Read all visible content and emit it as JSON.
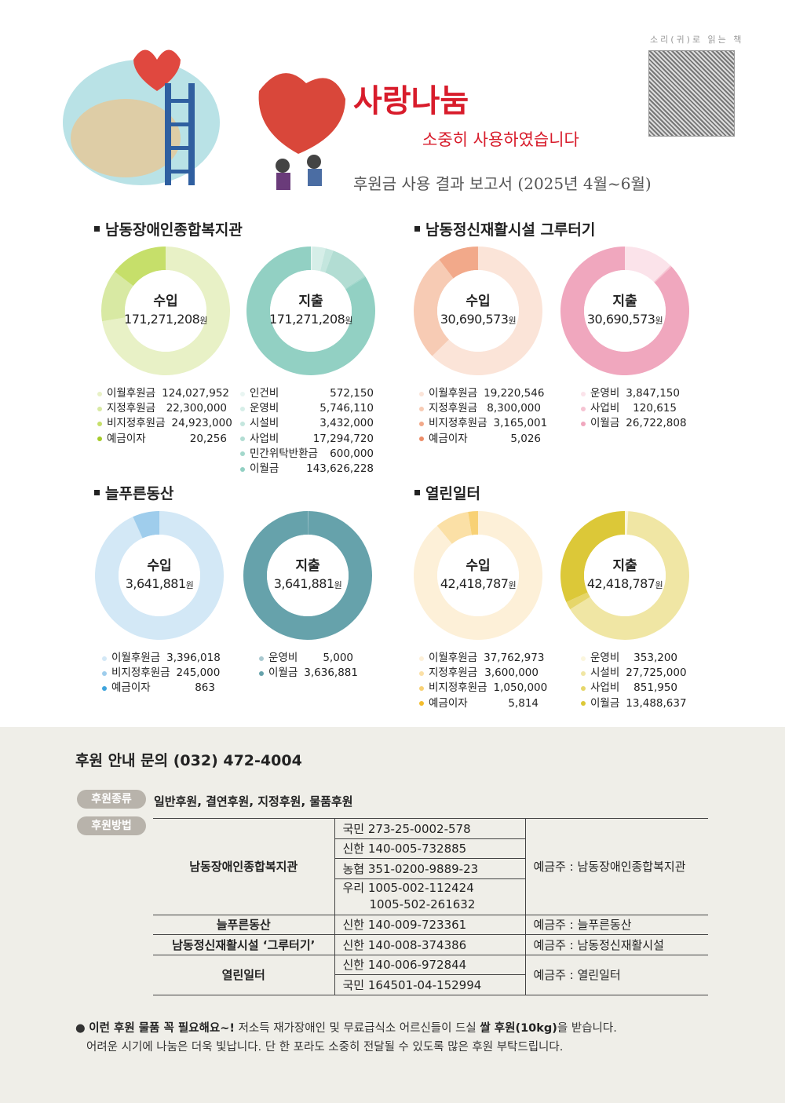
{
  "header": {
    "qr_label": "소리(귀)로 읽는 책",
    "title": "사랑나눔",
    "subtitle": "소중히 사용하였습니다",
    "report": "후원금 사용 결과 보고서 (2025년 4월~6월)"
  },
  "sections": [
    {
      "title": "남동장애인종합복지관",
      "income": {
        "label": "수입",
        "amount": "171,271,208",
        "unit": "원",
        "items": [
          {
            "name": "이월후원금",
            "value": "124,027,952",
            "num": 124027952,
            "color": "#e8f1c6"
          },
          {
            "name": "지정후원금",
            "value": "22,300,000",
            "num": 22300000,
            "color": "#d8e9a3"
          },
          {
            "name": "비지정후원금",
            "value": "24,923,000",
            "num": 24923000,
            "color": "#c6df6a"
          },
          {
            "name": "예금이자",
            "value": "20,256",
            "num": 20256,
            "color": "#a6cc2a"
          }
        ]
      },
      "expense": {
        "label": "지출",
        "amount": "171,271,208",
        "unit": "원",
        "items": [
          {
            "name": "인건비",
            "value": "572,150",
            "num": 572150,
            "color": "#e9f5f2"
          },
          {
            "name": "운영비",
            "value": "5,746,110",
            "num": 5746110,
            "color": "#d6eee8"
          },
          {
            "name": "시설비",
            "value": "3,432,000",
            "num": 3432000,
            "color": "#c4e6de"
          },
          {
            "name": "사업비",
            "value": "17,294,720",
            "num": 17294720,
            "color": "#b2ddd3"
          },
          {
            "name": "민간위탁반환금",
            "value": "600,000",
            "num": 600000,
            "color": "#a3d8cc"
          },
          {
            "name": "이월금",
            "value": "143,626,228",
            "num": 143626228,
            "color": "#92d0c3"
          }
        ]
      }
    },
    {
      "title": "남동정신재활시설 그루터기",
      "income": {
        "label": "수입",
        "amount": "30,690,573",
        "unit": "원",
        "items": [
          {
            "name": "이월후원금",
            "value": "19,220,546",
            "num": 19220546,
            "color": "#fbe4d8"
          },
          {
            "name": "지정후원금",
            "value": "8,300,000",
            "num": 8300000,
            "color": "#f7cbb4"
          },
          {
            "name": "비지정후원금",
            "value": "3,165,001",
            "num": 3165001,
            "color": "#f2a98a"
          },
          {
            "name": "예금이자",
            "value": "5,026",
            "num": 5026,
            "color": "#ec8d68"
          }
        ]
      },
      "expense": {
        "label": "지출",
        "amount": "30,690,573",
        "unit": "원",
        "items": [
          {
            "name": "운영비",
            "value": "3,847,150",
            "num": 3847150,
            "color": "#fbe3ea"
          },
          {
            "name": "사업비",
            "value": "120,615",
            "num": 120615,
            "color": "#f6c3d2"
          },
          {
            "name": "이월금",
            "value": "26,722,808",
            "num": 26722808,
            "color": "#f0a7be"
          }
        ]
      }
    },
    {
      "title": "늘푸른동산",
      "income": {
        "label": "수입",
        "amount": "3,641,881",
        "unit": "원",
        "items": [
          {
            "name": "이월후원금",
            "value": "3,396,018",
            "num": 3396018,
            "color": "#d3e8f6"
          },
          {
            "name": "비지정후원금",
            "value": "245,000",
            "num": 245000,
            "color": "#9fcdec"
          },
          {
            "name": "예금이자",
            "value": "863",
            "num": 863,
            "color": "#3fa4dc"
          }
        ]
      },
      "expense": {
        "label": "지출",
        "amount": "3,641,881",
        "unit": "원",
        "items": [
          {
            "name": "운영비",
            "value": "5,000",
            "num": 5000,
            "color": "#a9c9d0"
          },
          {
            "name": "이월금",
            "value": "3,636,881",
            "num": 3636881,
            "color": "#66a2ab"
          }
        ]
      }
    },
    {
      "title": "열린일터",
      "income": {
        "label": "수입",
        "amount": "42,418,787",
        "unit": "원",
        "items": [
          {
            "name": "이월후원금",
            "value": "37,762,973",
            "num": 37762973,
            "color": "#fdf0d8"
          },
          {
            "name": "지정후원금",
            "value": "3,600,000",
            "num": 3600000,
            "color": "#fbe0a6"
          },
          {
            "name": "비지정후원금",
            "value": "1,050,000",
            "num": 1050000,
            "color": "#f8d175"
          },
          {
            "name": "예금이자",
            "value": "5,814",
            "num": 5814,
            "color": "#f4bd2e"
          }
        ]
      },
      "expense": {
        "label": "지출",
        "amount": "42,418,787",
        "unit": "원",
        "items": [
          {
            "name": "운영비",
            "value": "353,200",
            "num": 353200,
            "color": "#fbf6dd"
          },
          {
            "name": "시설비",
            "value": "27,725,000",
            "num": 27725000,
            "color": "#f0e6a4"
          },
          {
            "name": "사업비",
            "value": "851,950",
            "num": 851950,
            "color": "#e6d66a"
          },
          {
            "name": "이월금",
            "value": "13,488,637",
            "num": 13488637,
            "color": "#dcc838"
          }
        ]
      }
    }
  ],
  "footer": {
    "contact": "후원 안내 문의 (032) 472-4004",
    "type_tag": "후원종류",
    "types": "일반후원, 결연후원, 지정후원, 물품후원",
    "method_tag": "후원방법",
    "banks": [
      {
        "org": "남동장애인종합복지관",
        "accounts": [
          "국민 273-25-0002-578",
          "신한 140-005-732885",
          "농협 351-0200-9889-23",
          "우리 1005-002-112424",
          "1005-502-261632"
        ],
        "holder": "예금주 : 남동장애인종합복지관"
      },
      {
        "org": "늘푸른동산",
        "accounts": [
          "신한 140-009-723361"
        ],
        "holder": "예금주 : 늘푸른동산"
      },
      {
        "org": "남동정신재활시설 ‘그루터기’",
        "accounts": [
          "신한 140-008-374386"
        ],
        "holder": "예금주 : 남동정신재활시설"
      },
      {
        "org": "열린일터",
        "accounts": [
          "신한 140-006-972844",
          "국민 164501-04-152994"
        ],
        "holder": "예금주 : 열린일터"
      }
    ],
    "note_bold1": "이런 후원 물품 꼭 필요해요~!",
    "note_text1": " 저소득 재가장애인 및 무료급식소 어르신들이 드실 ",
    "note_bold2": "쌀 후원(10kg)",
    "note_text2": "을 받습니다.",
    "note_line2": "어려운 시기에 나눔은 더욱 빛납니다. 단 한 포라도 소중히 전달될 수 있도록 많은 후원 부탁드립니다."
  }
}
